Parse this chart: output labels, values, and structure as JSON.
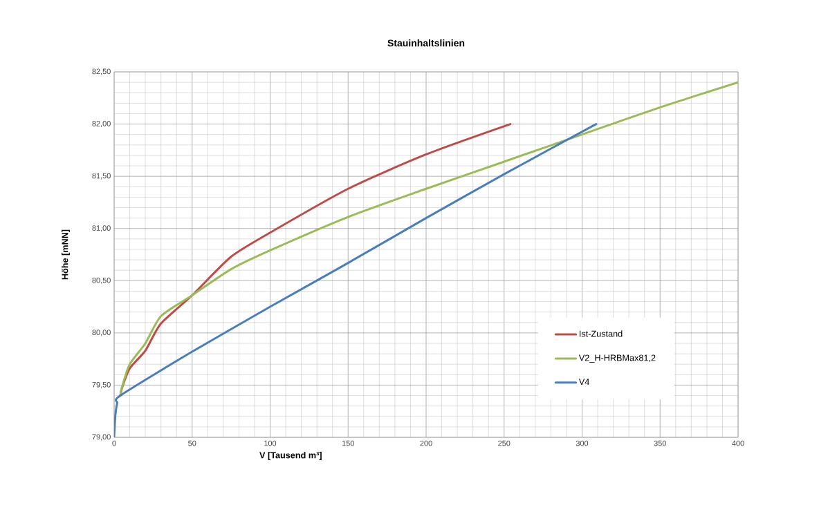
{
  "chart_data": {
    "type": "line",
    "title": "Stauinhaltslinien",
    "xlabel": "V [Tausend m³]",
    "ylabel": "Höhe [mNN]",
    "xlim": [
      0,
      400
    ],
    "xticks": [
      0,
      50,
      100,
      150,
      200,
      250,
      300,
      350,
      400
    ],
    "ylim": [
      79,
      82.5
    ],
    "yticks": [
      {
        "value": 79,
        "label": "79,00"
      },
      {
        "value": 79.5,
        "label": "79,50"
      },
      {
        "value": 80,
        "label": "80,00"
      },
      {
        "value": 80.5,
        "label": "80,50"
      },
      {
        "value": 81,
        "label": "81,00"
      },
      {
        "value": 81.5,
        "label": "81,50"
      },
      {
        "value": 82,
        "label": "82,00"
      },
      {
        "value": 82.5,
        "label": "82,50"
      }
    ],
    "grid": true,
    "legend": "bottom right",
    "series": [
      {
        "name": "Ist-Zustand",
        "color": "#be4b48",
        "x": [
          4,
          5,
          10,
          20,
          30,
          50,
          75,
          100,
          150,
          200,
          254
        ],
        "values": [
          79.4,
          79.47,
          79.66,
          79.83,
          80.09,
          80.36,
          80.73,
          80.96,
          81.38,
          81.71,
          82.0
        ]
      },
      {
        "name": "V2_H-HRBMax81,2",
        "color": "#9bbb59",
        "x": [
          4,
          5,
          10,
          20,
          30,
          50,
          75,
          100,
          150,
          200,
          250,
          300,
          350,
          400
        ],
        "values": [
          79.4,
          79.48,
          79.7,
          79.9,
          80.16,
          80.36,
          80.61,
          80.79,
          81.11,
          81.38,
          81.64,
          81.9,
          82.16,
          82.4
        ]
      },
      {
        "name": "V4",
        "color": "#4a7ebb",
        "x": [
          0,
          0.5,
          1,
          2,
          4,
          50,
          100,
          150,
          200,
          250,
          309
        ],
        "values": [
          79.0,
          79.15,
          79.24,
          79.33,
          79.4,
          79.82,
          80.25,
          80.67,
          81.1,
          81.52,
          82.0
        ]
      }
    ]
  }
}
